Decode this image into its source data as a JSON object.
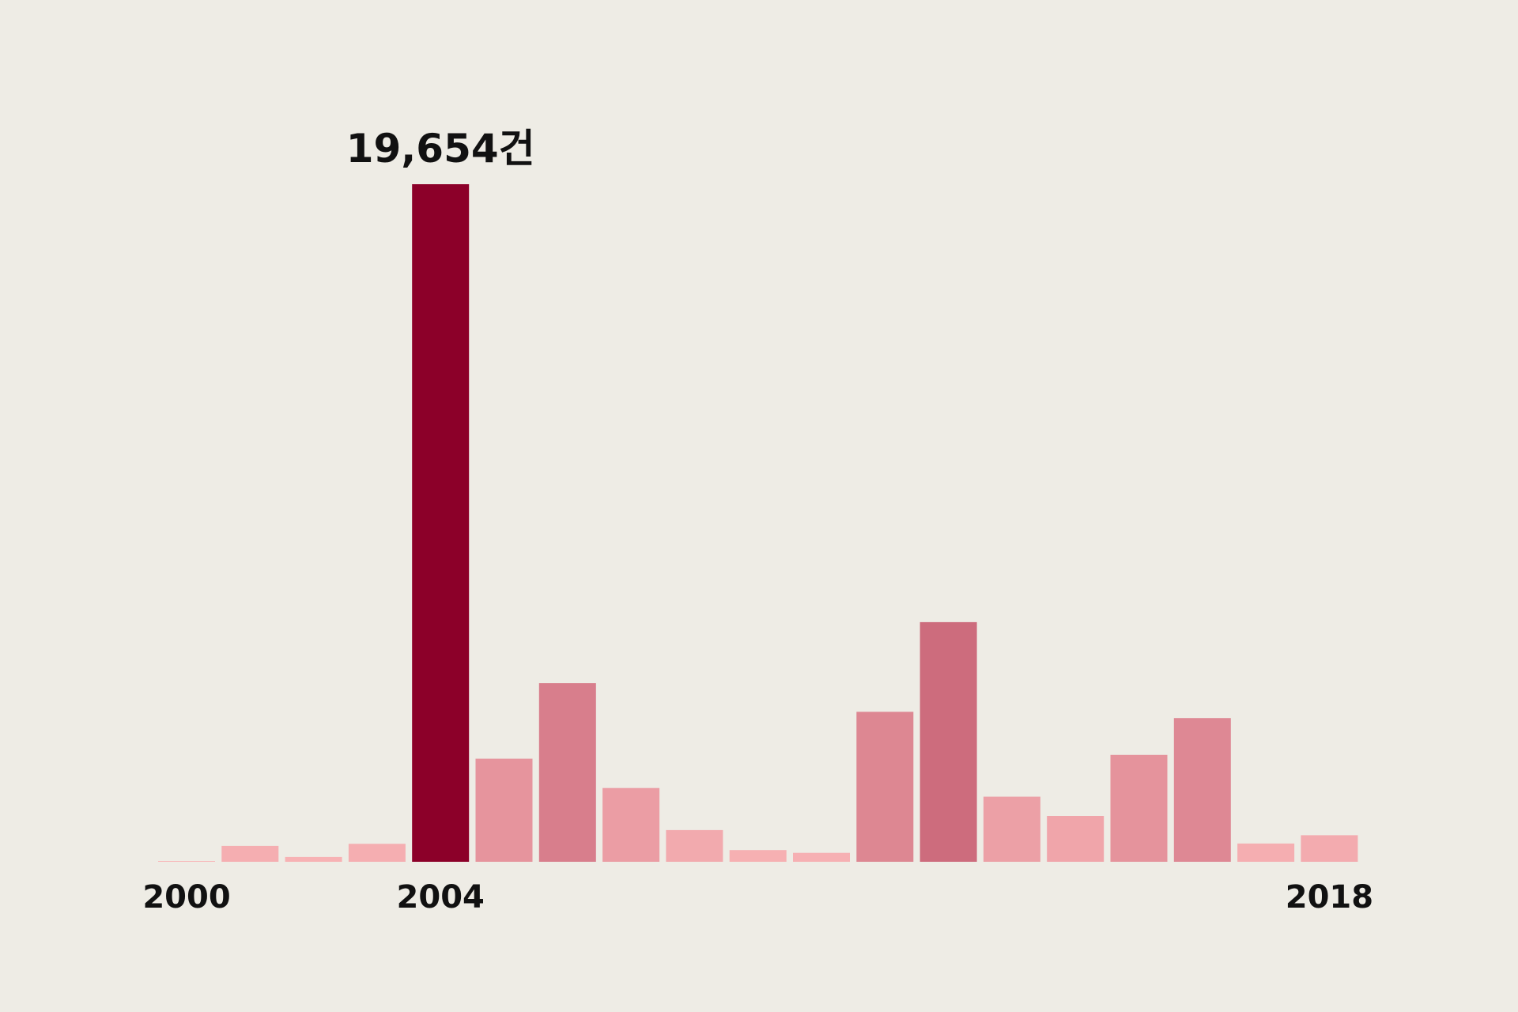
{
  "chart_data": {
    "type": "bar",
    "title": "",
    "xlabel": "",
    "ylabel": "",
    "categories": [
      "2000",
      "2001",
      "2002",
      "2003",
      "2004",
      "2005",
      "2006",
      "2007",
      "2008",
      "2009",
      "2010",
      "2011",
      "2012",
      "2013",
      "2014",
      "2015",
      "2016",
      "2017",
      "2018"
    ],
    "values": [
      20,
      460,
      140,
      520,
      19654,
      2990,
      5180,
      2140,
      920,
      340,
      260,
      4350,
      6950,
      1890,
      1330,
      3100,
      4170,
      530,
      770
    ],
    "ylim": [
      0,
      19654
    ],
    "grid": false,
    "legend": "none",
    "highlight": {
      "category": "2004",
      "label": "19,654건",
      "color": "#8c0029"
    },
    "x_tick_labels": [
      "2000",
      "2004",
      "2018"
    ],
    "color_scale": {
      "low": "#f8b3b5",
      "high": "#8c0029"
    }
  }
}
